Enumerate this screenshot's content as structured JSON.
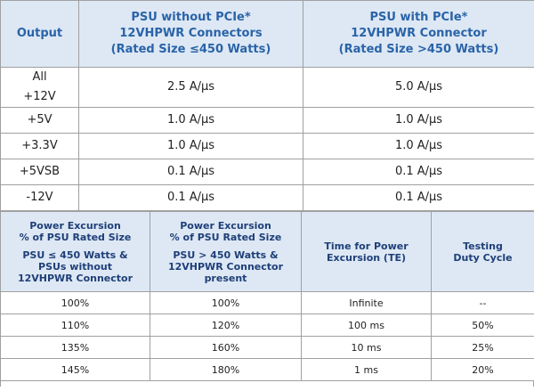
{
  "table1": {
    "header": [
      [
        "Output"
      ],
      [
        "PSU without PCIe*",
        "12VHPWR Connectors",
        "(Rated Size ≤450 Watts)"
      ],
      [
        "PSU with PCIe*",
        "12VHPWR Connector",
        "(Rated Size >450 Watts)"
      ]
    ],
    "rows": [
      [
        [
          "All",
          "+12V"
        ],
        "2.5 A/μs",
        "5.0 A/μs"
      ],
      [
        "+5V",
        "1.0 A/μs",
        "1.0 A/μs"
      ],
      [
        "+3.3V",
        "1.0 A/μs",
        "1.0 A/μs"
      ],
      [
        "+5VSB",
        "0.1 A/μs",
        "0.1 A/μs"
      ],
      [
        "-12V",
        "0.1 A/μs",
        "0.1 A/μs"
      ]
    ]
  },
  "table2": {
    "header": [
      [
        [
          "Power Excursion",
          "% of PSU Rated Size"
        ],
        [
          "PSU ≤ 450 Watts &",
          "PSUs without",
          "12VHPWR Connector"
        ]
      ],
      [
        [
          "Power Excursion",
          "% of PSU Rated Size"
        ],
        [
          "PSU > 450 Watts &",
          "12VHPWR Connector",
          "present"
        ]
      ],
      [
        [
          "Time for Power",
          "Excursion (TE)"
        ]
      ],
      [
        [
          "Testing",
          "Duty Cycle"
        ]
      ]
    ],
    "rows": [
      [
        "100%",
        "100%",
        "Infinite",
        "--"
      ],
      [
        "110%",
        "120%",
        "100 ms",
        "50%"
      ],
      [
        "135%",
        "160%",
        "10 ms",
        "25%"
      ],
      [
        "145%",
        "180%",
        "1 ms",
        "20%"
      ]
    ]
  }
}
